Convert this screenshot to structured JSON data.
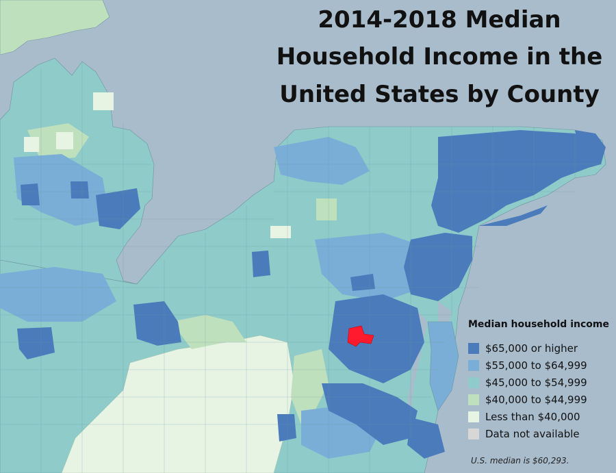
{
  "title": {
    "line1": "2014-2018 Median",
    "line2": "Household Income in the",
    "line3": "United States by County"
  },
  "legend": {
    "title": "Median household income",
    "items": [
      {
        "label": "$65,000 or higher",
        "color": "#4b7bbb"
      },
      {
        "label": "$55,000 to $64,999",
        "color": "#7aaed6"
      },
      {
        "label": "$45,000 to $54,999",
        "color": "#8fcbc8"
      },
      {
        "label": "$40,000 to $44,999",
        "color": "#bfe0bd"
      },
      {
        "label": "Less than $40,000",
        "color": "#e7f4e4"
      },
      {
        "label": "Data not available",
        "color": "#d7d7d7"
      }
    ]
  },
  "footnote": "U.S. median is $60,293.",
  "highlight_color": "#ff1a2e",
  "water_color": "#a9bccc"
}
